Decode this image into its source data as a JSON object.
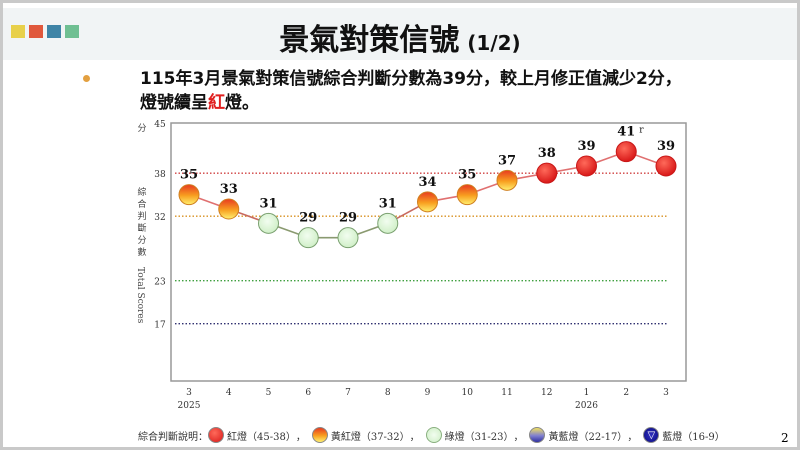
{
  "header": {
    "title": "景氣對策信號",
    "page_part": "(1/2)",
    "accent_squares": [
      "#e8d04a",
      "#e0583c",
      "#3f84a6",
      "#6fbf92"
    ]
  },
  "summary": {
    "line1": "115年3月景氣對策信號綜合判斷分數為39分，較上月修正值減少2分，",
    "line2_prefix": "燈號續呈",
    "line2_red": "紅",
    "line2_suffix": "燈。"
  },
  "chart_data": {
    "type": "line",
    "categories": [
      "3",
      "4",
      "5",
      "6",
      "7",
      "8",
      "9",
      "10",
      "11",
      "12",
      "1",
      "2",
      "3"
    ],
    "year_labels": [
      {
        "index": 0,
        "label": "2025"
      },
      {
        "index": 10,
        "label": "2026"
      }
    ],
    "values": [
      35,
      33,
      31,
      29,
      29,
      31,
      34,
      35,
      37,
      38,
      39,
      41,
      39
    ],
    "data_labels": [
      "35",
      "33",
      "31",
      "29",
      "29",
      "31",
      "34",
      "35",
      "37",
      "38",
      "39",
      "41",
      "39"
    ],
    "revised_marker": {
      "index": 11,
      "label": "r"
    },
    "ylim": [
      9,
      45
    ],
    "yticks": [
      45,
      38,
      32,
      23,
      17
    ],
    "ylabel_top": "分",
    "ylabel_cn": "綜合判斷分數",
    "ylabel_en": "Total Scores",
    "threshold_lines": [
      {
        "value": 38,
        "color": "#d04040"
      },
      {
        "value": 32,
        "color": "#d89020"
      },
      {
        "value": 23,
        "color": "#40a040"
      },
      {
        "value": 17,
        "color": "#303070"
      }
    ],
    "signal_colors": {
      "red": "#e02020",
      "yellow_red": "#f0a020",
      "green": "#d8f5d0",
      "yellow_blue": "#8080d0",
      "blue": "#1010a0"
    }
  },
  "legend": {
    "title": "綜合判斷說明：",
    "items": [
      {
        "label": "紅燈（45-38）",
        "color": "#e02020"
      },
      {
        "label": "黃紅燈（37-32）",
        "color": "#f0a020"
      },
      {
        "label": "綠燈（31-23）",
        "color": "#d8f5d0"
      },
      {
        "label": "黃藍燈（22-17）",
        "color": "#8080d0"
      },
      {
        "label": "藍燈（16-9）",
        "color": "#1010a0"
      }
    ],
    "separator": "，"
  },
  "page_number": "2"
}
